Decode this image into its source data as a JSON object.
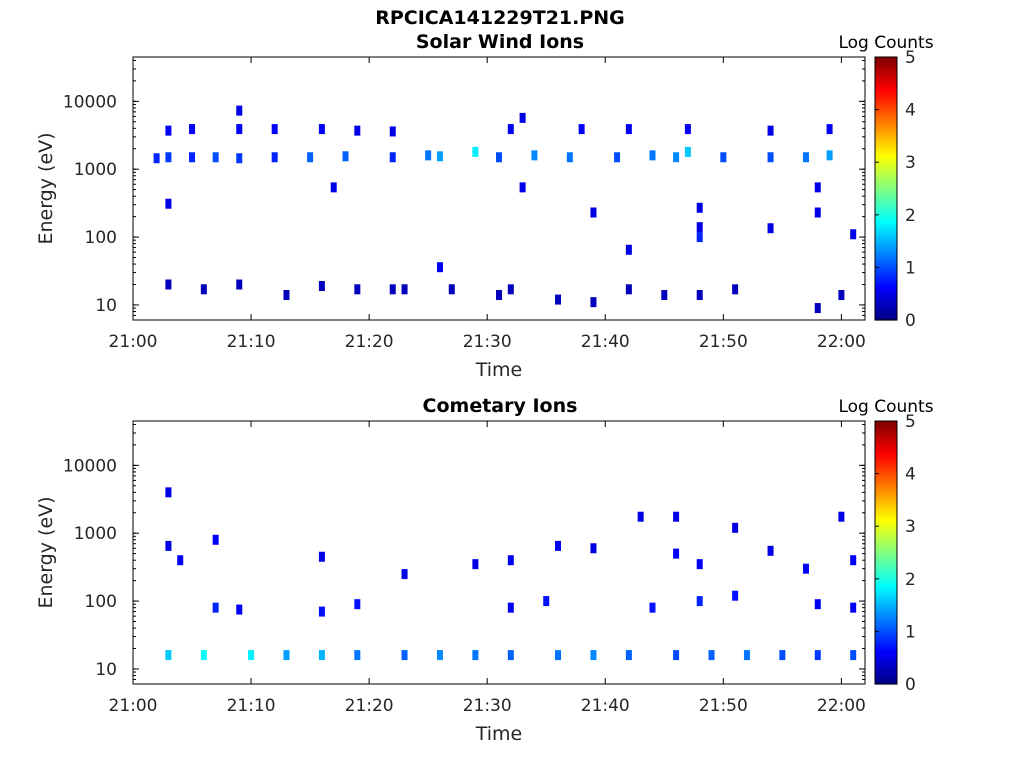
{
  "figure": {
    "title": "RPCICA141229T21.PNG"
  },
  "chart_data": [
    {
      "type": "heatmap",
      "title": "Solar Wind Ions",
      "xlabel": "Time",
      "ylabel": "Energy (eV)",
      "yscale": "log",
      "ylim": [
        6,
        45000
      ],
      "xlim": [
        "21:00",
        "22:02"
      ],
      "x_ticks": [
        "21:00",
        "21:10",
        "21:20",
        "21:30",
        "21:40",
        "21:50",
        "22:00"
      ],
      "y_ticks": [
        "10",
        "100",
        "1000",
        "10000"
      ],
      "colorbar": {
        "label": "Log Counts",
        "range": [
          0,
          5
        ],
        "ticks": [
          "0",
          "1",
          "2",
          "3",
          "4",
          "5"
        ],
        "colormap": "jet"
      },
      "grid": false,
      "cells": [
        [
          "21:02",
          1450,
          0.8
        ],
        [
          "21:03",
          1500,
          0.9
        ],
        [
          "21:03",
          3700,
          0.6
        ],
        [
          "21:05",
          1500,
          0.8
        ],
        [
          "21:05",
          3900,
          0.6
        ],
        [
          "21:07",
          1500,
          1.0
        ],
        [
          "21:09",
          1450,
          0.9
        ],
        [
          "21:09",
          3900,
          0.6
        ],
        [
          "21:09",
          7300,
          0.5
        ],
        [
          "21:12",
          1500,
          0.8
        ],
        [
          "21:12",
          3900,
          0.6
        ],
        [
          "21:15",
          1500,
          1.1
        ],
        [
          "21:16",
          3900,
          0.6
        ],
        [
          "21:18",
          1550,
          1.1
        ],
        [
          "21:19",
          3700,
          0.5
        ],
        [
          "21:22",
          1500,
          0.8
        ],
        [
          "21:22",
          3600,
          0.5
        ],
        [
          "21:25",
          1600,
          1.2
        ],
        [
          "21:26",
          1550,
          1.4
        ],
        [
          "21:29",
          1800,
          1.8
        ],
        [
          "21:31",
          1500,
          1.0
        ],
        [
          "21:32",
          3900,
          0.6
        ],
        [
          "21:33",
          5700,
          0.5
        ],
        [
          "21:34",
          1600,
          1.3
        ],
        [
          "21:37",
          1500,
          1.2
        ],
        [
          "21:38",
          3900,
          0.6
        ],
        [
          "21:41",
          1500,
          1.0
        ],
        [
          "21:42",
          3900,
          0.6
        ],
        [
          "21:44",
          1600,
          1.2
        ],
        [
          "21:46",
          1500,
          1.3
        ],
        [
          "21:47",
          1800,
          1.6
        ],
        [
          "21:47",
          3900,
          0.6
        ],
        [
          "21:50",
          1500,
          1.0
        ],
        [
          "21:54",
          1500,
          1.0
        ],
        [
          "21:54",
          3700,
          0.5
        ],
        [
          "21:57",
          1500,
          1.2
        ],
        [
          "21:59",
          1600,
          1.4
        ],
        [
          "21:59",
          3900,
          0.6
        ],
        [
          "21:03",
          310,
          0.5
        ],
        [
          "21:17",
          540,
          0.5
        ],
        [
          "21:33",
          540,
          0.5
        ],
        [
          "21:39",
          230,
          0.5
        ],
        [
          "21:42",
          65,
          0.5
        ],
        [
          "21:48",
          270,
          0.5
        ],
        [
          "21:48",
          140,
          0.5
        ],
        [
          "21:48",
          100,
          0.8
        ],
        [
          "21:54",
          135,
          0.5
        ],
        [
          "21:58",
          230,
          0.5
        ],
        [
          "21:58",
          540,
          0.5
        ],
        [
          "22:01",
          110,
          0.5
        ],
        [
          "21:26",
          36,
          0.6
        ],
        [
          "21:03",
          20,
          0.3
        ],
        [
          "21:06",
          17,
          0.3
        ],
        [
          "21:09",
          20,
          0.3
        ],
        [
          "21:13",
          14,
          0.3
        ],
        [
          "21:16",
          19,
          0.3
        ],
        [
          "21:19",
          17,
          0.3
        ],
        [
          "21:22",
          17,
          0.3
        ],
        [
          "21:23",
          17,
          0.3
        ],
        [
          "21:27",
          17,
          0.3
        ],
        [
          "21:31",
          14,
          0.3
        ],
        [
          "21:32",
          17,
          0.3
        ],
        [
          "21:36",
          12,
          0.3
        ],
        [
          "21:39",
          11,
          0.3
        ],
        [
          "21:42",
          17,
          0.3
        ],
        [
          "21:45",
          14,
          0.3
        ],
        [
          "21:48",
          14,
          0.3
        ],
        [
          "21:51",
          17,
          0.3
        ],
        [
          "21:58",
          9,
          0.3
        ],
        [
          "22:00",
          14,
          0.3
        ]
      ]
    },
    {
      "type": "heatmap",
      "title": "Cometary Ions",
      "xlabel": "Time",
      "ylabel": "Energy (eV)",
      "yscale": "log",
      "ylim": [
        6,
        45000
      ],
      "xlim": [
        "21:00",
        "22:02"
      ],
      "x_ticks": [
        "21:00",
        "21:10",
        "21:20",
        "21:30",
        "21:40",
        "21:50",
        "22:00"
      ],
      "y_ticks": [
        "10",
        "100",
        "1000",
        "10000"
      ],
      "colorbar": {
        "label": "Log Counts",
        "range": [
          0,
          5
        ],
        "ticks": [
          "0",
          "1",
          "2",
          "3",
          "4",
          "5"
        ],
        "colormap": "jet"
      },
      "grid": false,
      "cells": [
        [
          "21:03",
          16,
          1.6
        ],
        [
          "21:06",
          16,
          1.9
        ],
        [
          "21:10",
          16,
          1.8
        ],
        [
          "21:13",
          16,
          1.4
        ],
        [
          "21:16",
          16,
          1.5
        ],
        [
          "21:19",
          16,
          1.2
        ],
        [
          "21:23",
          16,
          1.1
        ],
        [
          "21:26",
          16,
          1.3
        ],
        [
          "21:29",
          16,
          1.2
        ],
        [
          "21:32",
          16,
          1.1
        ],
        [
          "21:36",
          16,
          1.2
        ],
        [
          "21:39",
          16,
          1.3
        ],
        [
          "21:42",
          16,
          1.1
        ],
        [
          "21:46",
          16,
          1.0
        ],
        [
          "21:49",
          16,
          1.1
        ],
        [
          "21:52",
          16,
          1.2
        ],
        [
          "21:55",
          16,
          1.0
        ],
        [
          "21:58",
          16,
          0.9
        ],
        [
          "22:01",
          16,
          1.0
        ],
        [
          "21:03",
          4000,
          0.5
        ],
        [
          "21:03",
          650,
          0.5
        ],
        [
          "21:04",
          400,
          0.6
        ],
        [
          "21:07",
          800,
          0.6
        ],
        [
          "21:07",
          80,
          0.8
        ],
        [
          "21:09",
          75,
          0.6
        ],
        [
          "21:16",
          450,
          0.5
        ],
        [
          "21:16",
          70,
          0.7
        ],
        [
          "21:19",
          90,
          0.7
        ],
        [
          "21:23",
          250,
          0.5
        ],
        [
          "21:29",
          350,
          0.5
        ],
        [
          "21:32",
          400,
          0.6
        ],
        [
          "21:32",
          80,
          0.6
        ],
        [
          "21:35",
          100,
          0.7
        ],
        [
          "21:36",
          650,
          0.6
        ],
        [
          "21:39",
          600,
          0.5
        ],
        [
          "21:43",
          1750,
          0.5
        ],
        [
          "21:44",
          80,
          0.7
        ],
        [
          "21:46",
          1750,
          0.5
        ],
        [
          "21:46",
          500,
          0.6
        ],
        [
          "21:48",
          350,
          0.6
        ],
        [
          "21:48",
          100,
          0.8
        ],
        [
          "21:51",
          1200,
          0.5
        ],
        [
          "21:51",
          120,
          0.7
        ],
        [
          "21:54",
          550,
          0.5
        ],
        [
          "21:57",
          300,
          0.6
        ],
        [
          "21:58",
          90,
          0.6
        ],
        [
          "22:00",
          1750,
          0.5
        ],
        [
          "22:01",
          400,
          0.6
        ],
        [
          "22:01",
          80,
          0.6
        ]
      ]
    }
  ]
}
